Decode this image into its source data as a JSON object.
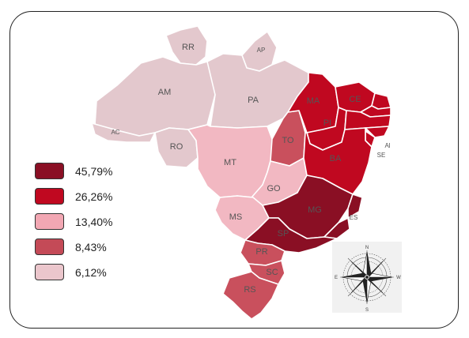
{
  "legend": [
    {
      "label": "45,79%",
      "color": "#8a0f24"
    },
    {
      "label": "26,26%",
      "color": "#c00820"
    },
    {
      "label": "13,40%",
      "color": "#f2a7b3"
    },
    {
      "label": "8,43%",
      "color": "#c44a57"
    },
    {
      "label": "6,12%",
      "color": "#ebc6cc"
    }
  ],
  "states": [
    {
      "id": "RR",
      "label": "RR",
      "color": "#e3c8cd"
    },
    {
      "id": "AP",
      "label": "AP",
      "color": "#e3c8cd"
    },
    {
      "id": "AM",
      "label": "AM",
      "color": "#e3c8cd"
    },
    {
      "id": "PA",
      "label": "PA",
      "color": "#e3c8cd"
    },
    {
      "id": "AC",
      "label": "AC",
      "color": "#e3c8cd"
    },
    {
      "id": "RO",
      "label": "RO",
      "color": "#e3c8cd"
    },
    {
      "id": "MT",
      "label": "MT",
      "color": "#f2b8c2"
    },
    {
      "id": "TO",
      "label": "TO",
      "color": "#c9505d"
    },
    {
      "id": "GO",
      "label": "GO",
      "color": "#f2b8c2"
    },
    {
      "id": "MS",
      "label": "MS",
      "color": "#f2b8c2"
    },
    {
      "id": "MA",
      "label": "MA",
      "color": "#c00820"
    },
    {
      "id": "PI",
      "label": "PI",
      "color": "#c00820"
    },
    {
      "id": "CE",
      "label": "CE",
      "color": "#c00820"
    },
    {
      "id": "RN",
      "label": "",
      "color": "#c00820"
    },
    {
      "id": "PB",
      "label": "",
      "color": "#c00820"
    },
    {
      "id": "PE",
      "label": "",
      "color": "#c00820"
    },
    {
      "id": "AL",
      "label": "Al",
      "color": "#c00820"
    },
    {
      "id": "SE",
      "label": "SE",
      "color": "#c00820"
    },
    {
      "id": "BA",
      "label": "BA",
      "color": "#c00820"
    },
    {
      "id": "MG",
      "label": "MG",
      "color": "#8a0f24"
    },
    {
      "id": "ES",
      "label": "ES",
      "color": "#8a0f24"
    },
    {
      "id": "RJ",
      "label": "",
      "color": "#8a0f24"
    },
    {
      "id": "SP",
      "label": "SP",
      "color": "#8a0f24"
    },
    {
      "id": "PR",
      "label": "PR",
      "color": "#c9505d"
    },
    {
      "id": "SC",
      "label": "SC",
      "color": "#c9505d"
    },
    {
      "id": "RS",
      "label": "RS",
      "color": "#c9505d"
    }
  ],
  "compass": {
    "icon": "compass-rose-icon",
    "color": "#222222"
  }
}
